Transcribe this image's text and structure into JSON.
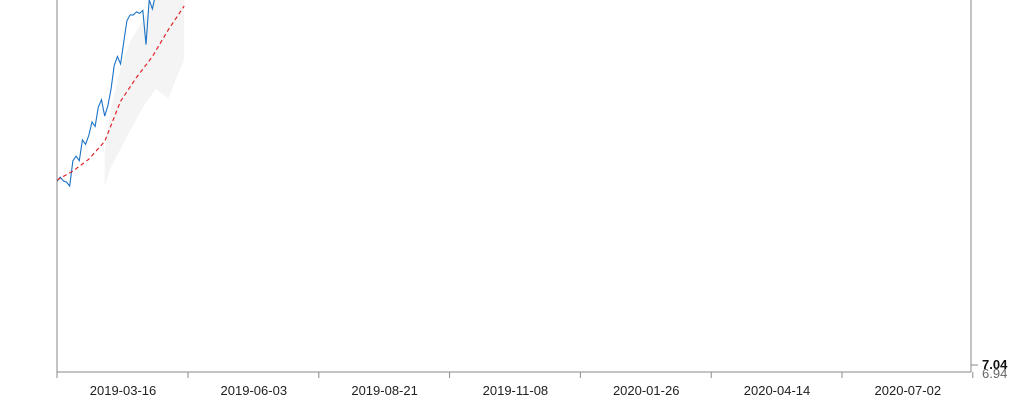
{
  "chart_data": {
    "type": "line",
    "title": "",
    "xlabel": "",
    "ylabel": "",
    "x_ticks": [
      "2019-03-16",
      "2019-06-03",
      "2019-08-21",
      "2019-11-08",
      "2020-01-26",
      "2020-04-14",
      "2020-07-02"
    ],
    "x_range": [
      "2019-01-17",
      "2020-08-14"
    ],
    "y_ticks": [
      {
        "label": "7.04",
        "value": 7.04,
        "emphasis": true
      },
      {
        "label": "6.94",
        "value": 6.94,
        "emphasis": false
      }
    ],
    "y_scale_note": "vertical scale: 7.04 near bottom gridline; visible data region above clipped",
    "grid": false,
    "legend": "none",
    "colors": {
      "primary_line": "#1a73c6",
      "forecast_line": "#e0242c",
      "confidence_band": "#ededed",
      "axis": "#8a8a8a",
      "tick_text": "#222222"
    },
    "series": [
      {
        "style": "solid",
        "x": [
          "2019-01-17",
          "2019-01-19",
          "2019-01-21",
          "2019-01-23",
          "2019-01-25",
          "2019-01-27",
          "2019-01-29",
          "2019-01-31",
          "2019-02-02",
          "2019-02-04",
          "2019-02-06",
          "2019-02-08",
          "2019-02-10",
          "2019-02-12",
          "2019-02-14",
          "2019-02-16",
          "2019-02-18",
          "2019-02-20",
          "2019-02-22",
          "2019-02-24",
          "2019-02-26",
          "2019-02-28",
          "2019-03-02",
          "2019-03-04",
          "2019-03-06",
          "2019-03-08",
          "2019-03-10",
          "2019-03-12",
          "2019-03-14",
          "2019-03-16",
          "2019-03-18",
          "2019-03-20",
          "2019-03-22",
          "2019-03-24",
          "2019-03-26",
          "2019-03-28",
          "2019-03-30",
          "2019-04-01",
          "2019-04-03",
          "2019-04-05",
          "2019-04-07"
        ],
        "y": [
          8.2,
          8.35,
          8.22,
          8.18,
          8.05,
          8.9,
          9.05,
          8.9,
          9.6,
          9.45,
          9.75,
          10.2,
          10.05,
          10.7,
          10.95,
          10.4,
          10.75,
          11.3,
          12.1,
          12.4,
          12.15,
          12.9,
          13.6,
          13.8,
          13.8,
          13.9,
          13.85,
          13.95,
          12.8,
          14.3,
          14.0,
          14.5,
          14.8,
          15.1,
          15.3,
          15.8,
          16.2,
          16.6,
          16.9,
          17.1,
          17.4
        ]
      },
      {
        "style": "dashed",
        "x": [
          "2019-01-17",
          "2019-01-27",
          "2019-02-06",
          "2019-02-16",
          "2019-02-26",
          "2019-03-08",
          "2019-03-18",
          "2019-03-28",
          "2019-04-07"
        ],
        "y": [
          8.25,
          8.55,
          8.95,
          9.55,
          10.9,
          11.7,
          12.4,
          13.3,
          14.1
        ]
      }
    ],
    "band": {
      "x": [
        "2019-02-16",
        "2019-02-20",
        "2019-02-26",
        "2019-03-04",
        "2019-03-12",
        "2019-03-20",
        "2019-03-28",
        "2019-04-07"
      ],
      "upper": [
        9.2,
        10.7,
        12.0,
        12.9,
        13.6,
        14.4,
        15.4,
        16.6
      ],
      "lower": [
        8.05,
        8.7,
        9.3,
        9.9,
        10.7,
        11.3,
        11.0,
        12.3
      ]
    }
  }
}
